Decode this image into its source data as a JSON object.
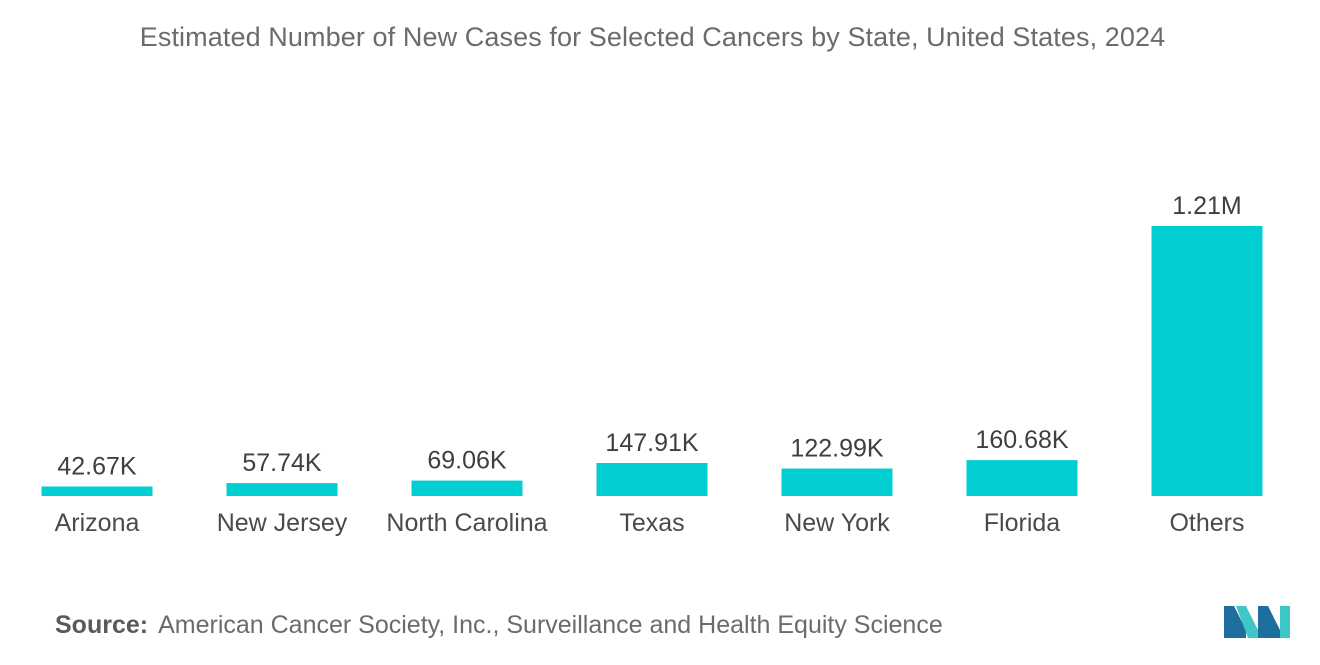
{
  "chart_data": {
    "type": "bar",
    "title": "Estimated Number of New Cases for Selected Cancers by State, United States, 2024",
    "xlabel": "",
    "ylabel": "",
    "categories": [
      "Arizona",
      "New Jersey",
      "North Carolina",
      "Texas",
      "New York",
      "Florida",
      "Others"
    ],
    "values": [
      42670,
      57740,
      69060,
      147910,
      122990,
      160680,
      1210000
    ],
    "data_labels": [
      "42.67K",
      "57.74K",
      "69.06K",
      "147.91K",
      "122.99K",
      "160.68K",
      "1.21M"
    ],
    "ylim": [
      0,
      1300000
    ],
    "grid": false,
    "bar_color": "#00ced1"
  },
  "source": {
    "label": "Source:",
    "text": "American Cancer Society, Inc., Surveillance and Health Equity Science"
  },
  "logo": {
    "icon": "mordor-intelligence-logo-icon",
    "colors": [
      "#1e6fa0",
      "#3fc6c6"
    ]
  }
}
